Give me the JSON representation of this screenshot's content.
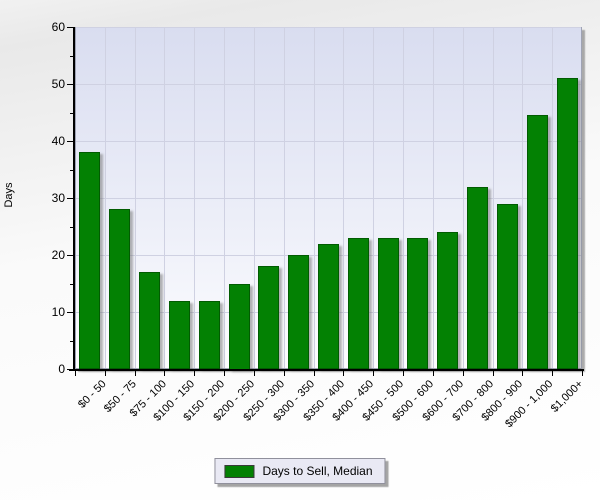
{
  "chart_data": {
    "type": "bar",
    "title": "",
    "xlabel": "",
    "ylabel": "Days",
    "categories": [
      "$0 - 50",
      "$50 - 75",
      "$75 - 100",
      "$100 - 150",
      "$150 - 200",
      "$200 - 250",
      "$250 - 300",
      "$300 - 350",
      "$350 - 400",
      "$400 - 450",
      "$450 - 500",
      "$500 - 600",
      "$600 - 700",
      "$700 - 800",
      "$800 - 900",
      "$900 - 1,000",
      "$1,000+"
    ],
    "values": [
      38,
      28,
      17,
      12,
      12,
      15,
      18,
      20,
      22,
      23,
      23,
      23,
      24,
      32,
      29,
      44.5,
      51
    ],
    "series": [
      {
        "name": "Days to Sell, Median",
        "color": "#038103"
      }
    ],
    "ylim": [
      0,
      60
    ],
    "y_ticks": [
      0,
      10,
      20,
      30,
      40,
      50,
      60
    ],
    "y_minor_step": 5,
    "grid": true,
    "legend_position": "bottom-center"
  },
  "legend": {
    "label": "Days to Sell, Median",
    "swatch_color": "#038103"
  },
  "colors": {
    "bar": "#038103",
    "bar_border": "#015c01",
    "axis": "#000000",
    "gridline": "#cfd1e2",
    "plot_bg_top": "#d9ddf0",
    "plot_bg_bottom": "#fdfdff"
  }
}
